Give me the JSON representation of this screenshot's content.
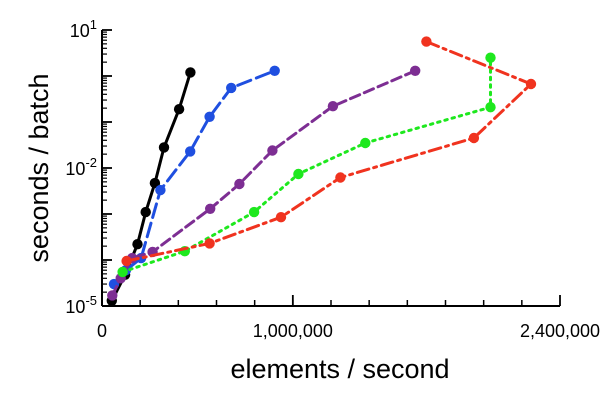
{
  "chart_data": {
    "type": "line",
    "title": "",
    "xlabel": "elements / second",
    "ylabel": "seconds / batch",
    "xlim": [
      0,
      2400000
    ],
    "ylim": [
      1e-05,
      10
    ],
    "yscale": "log",
    "grid": false,
    "legend": "none",
    "x_ticks": [
      {
        "value": 0,
        "label": "0"
      },
      {
        "value": 1000000,
        "label": "1,000,000"
      },
      {
        "value": 2400000,
        "label": "2,400,000"
      }
    ],
    "y_ticks": [
      {
        "value": 1e-05,
        "label": "10",
        "exponent": "-5"
      },
      {
        "value": 0.01,
        "label": "10",
        "exponent": "-2"
      },
      {
        "value": 10,
        "label": "10",
        "exponent": "1"
      }
    ],
    "series": [
      {
        "color": "#000000",
        "dash": "none",
        "points": [
          [
            51500,
            1.3e-05
          ],
          [
            121000,
            4.8e-05
          ],
          [
            186000,
            0.00022
          ],
          [
            229000,
            0.0011
          ],
          [
            277000,
            0.0047
          ],
          [
            325000,
            0.028
          ],
          [
            404000,
            0.19
          ],
          [
            463000,
            1.2
          ]
        ]
      },
      {
        "color": "#1f4fe0",
        "dash": "long",
        "points": [
          [
            63000,
            3e-05
          ],
          [
            125000,
            6e-05
          ],
          [
            205000,
            0.00011
          ],
          [
            306000,
            0.0033
          ],
          [
            462000,
            0.023
          ],
          [
            564000,
            0.13
          ],
          [
            677000,
            0.55
          ],
          [
            905000,
            1.3
          ]
        ]
      },
      {
        "color": "#7d2e93",
        "dash": "dash",
        "points": [
          [
            54000,
            1.7e-05
          ],
          [
            98000,
            4e-05
          ],
          [
            158000,
            0.00011
          ],
          [
            265000,
            0.00015
          ],
          [
            567000,
            0.0013
          ],
          [
            720000,
            0.0045
          ],
          [
            893000,
            0.024
          ],
          [
            1210000,
            0.22
          ],
          [
            1641000,
            1.3
          ]
        ]
      },
      {
        "color": "#1ee81e",
        "dash": "dot",
        "points": [
          [
            108000,
            5.5e-05
          ],
          [
            434000,
            0.000155
          ],
          [
            797000,
            0.0011
          ],
          [
            1029000,
            0.0074
          ],
          [
            1380000,
            0.035
          ],
          [
            2036000,
            0.21
          ],
          [
            2036000,
            2.5
          ]
        ]
      },
      {
        "color": "#f0331f",
        "dash": "dashdot",
        "points": [
          [
            129000,
            9.5e-05
          ],
          [
            564000,
            0.00023
          ],
          [
            938000,
            0.00085
          ],
          [
            1249000,
            0.0062
          ],
          [
            1949000,
            0.045
          ],
          [
            2248000,
            0.67
          ],
          [
            1700000,
            5.6
          ]
        ]
      }
    ]
  }
}
